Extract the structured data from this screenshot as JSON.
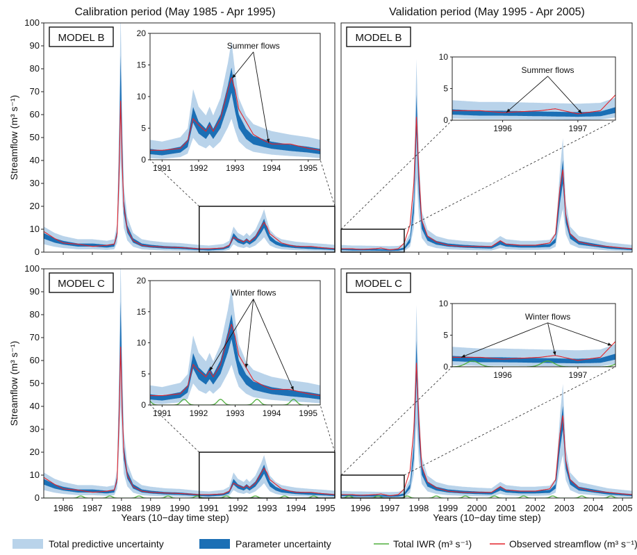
{
  "figure": {
    "col_titles": [
      "Calibration period (May 1985 - Apr 1995)",
      "Validation period (May 1995 - Apr 2005)"
    ],
    "ylabel": "Streamflow (m³ s⁻¹)",
    "xlabel": "Years (10−day time step)"
  },
  "colors": {
    "total_band": "#b9d3ea",
    "param_band": "#1b6fb5",
    "iwr_line": "#4fae3c",
    "observed_line": "#e3242b"
  },
  "legend": {
    "items": [
      {
        "key": "total",
        "label": "Total predictive uncertainty"
      },
      {
        "key": "param",
        "label": "Parameter uncertainty"
      },
      {
        "key": "iwr",
        "label": "Total IWR (m³ s⁻¹)"
      },
      {
        "key": "obs",
        "label": "Observed streamflow (m³ s⁻¹)"
      }
    ]
  },
  "chart_data": [
    {
      "type": "area",
      "panel": "calibration",
      "model": "MODEL B",
      "xlim": [
        1985.33,
        1995.33
      ],
      "ylim": [
        0,
        100
      ],
      "xticks": [
        1986,
        1987,
        1988,
        1989,
        1990,
        1991,
        1992,
        1993,
        1994,
        1995
      ],
      "yticks": [
        0,
        10,
        20,
        30,
        40,
        50,
        60,
        70,
        80,
        90,
        100
      ],
      "show_xtick_labels": false,
      "iwr": false,
      "inset": {
        "xlim": [
          1990.67,
          1995.33
        ],
        "ylim": [
          0,
          20
        ],
        "xticks": [
          1991,
          1992,
          1993,
          1994,
          1995
        ],
        "yticks": [
          0,
          5,
          10,
          15,
          20
        ],
        "annotation": "Summer flows",
        "iwr": false,
        "zoom_box": [
          1990.67,
          1995.33,
          0,
          20
        ]
      }
    },
    {
      "type": "area",
      "panel": "validation",
      "model": "MODEL B",
      "xlim": [
        1995.33,
        2005.33
      ],
      "ylim": [
        0,
        100
      ],
      "xticks": [
        1996,
        1997,
        1998,
        1999,
        2000,
        2001,
        2002,
        2003,
        2004,
        2005
      ],
      "yticks": [
        0,
        10,
        20,
        30,
        40,
        50,
        60,
        70,
        80,
        90,
        100
      ],
      "show_xtick_labels": false,
      "iwr": false,
      "inset": {
        "xlim": [
          1995.33,
          1997.5
        ],
        "ylim": [
          0,
          10
        ],
        "xticks": [
          1996,
          1997
        ],
        "yticks": [
          0,
          5,
          10
        ],
        "annotation": "Summer flows",
        "iwr": false,
        "zoom_box": [
          1995.33,
          1997.5,
          0,
          10
        ]
      }
    },
    {
      "type": "area",
      "panel": "calibration",
      "model": "MODEL C",
      "xlim": [
        1985.33,
        1995.33
      ],
      "ylim": [
        0,
        100
      ],
      "xticks": [
        1986,
        1987,
        1988,
        1989,
        1990,
        1991,
        1992,
        1993,
        1994,
        1995
      ],
      "yticks": [
        0,
        10,
        20,
        30,
        40,
        50,
        60,
        70,
        80,
        90,
        100
      ],
      "show_xtick_labels": true,
      "iwr": true,
      "inset": {
        "xlim": [
          1990.67,
          1995.33
        ],
        "ylim": [
          0,
          20
        ],
        "xticks": [
          1991,
          1992,
          1993,
          1994,
          1995
        ],
        "yticks": [
          0,
          5,
          10,
          15,
          20
        ],
        "annotation": "Winter flows",
        "iwr": true,
        "zoom_box": [
          1990.67,
          1995.33,
          0,
          20
        ]
      }
    },
    {
      "type": "area",
      "panel": "validation",
      "model": "MODEL C",
      "xlim": [
        1995.33,
        2005.33
      ],
      "ylim": [
        0,
        100
      ],
      "xticks": [
        1996,
        1997,
        1998,
        1999,
        2000,
        2001,
        2002,
        2003,
        2004,
        2005
      ],
      "yticks": [
        0,
        10,
        20,
        30,
        40,
        50,
        60,
        70,
        80,
        90,
        100
      ],
      "show_xtick_labels": true,
      "iwr": true,
      "inset": {
        "xlim": [
          1995.33,
          1997.5
        ],
        "ylim": [
          0,
          10
        ],
        "xticks": [
          1996,
          1997
        ],
        "yticks": [
          0,
          5,
          10
        ],
        "annotation": "Winter flows",
        "iwr": true,
        "zoom_box": [
          1995.33,
          1997.5,
          0,
          10
        ]
      }
    }
  ],
  "series_keyframes": {
    "median": [
      [
        1985.33,
        7
      ],
      [
        1985.7,
        5
      ],
      [
        1986,
        4
      ],
      [
        1986.5,
        3
      ],
      [
        1987,
        3
      ],
      [
        1987.5,
        2.5
      ],
      [
        1987.75,
        3
      ],
      [
        1987.85,
        8
      ],
      [
        1987.92,
        40
      ],
      [
        1987.97,
        75
      ],
      [
        1988.02,
        45
      ],
      [
        1988.08,
        20
      ],
      [
        1988.2,
        10
      ],
      [
        1988.4,
        5
      ],
      [
        1988.7,
        3
      ],
      [
        1989,
        2.5
      ],
      [
        1989.5,
        2
      ],
      [
        1990,
        1.8
      ],
      [
        1990.67,
        1.2
      ],
      [
        1991,
        1.0
      ],
      [
        1991.5,
        1.5
      ],
      [
        1991.7,
        2.5
      ],
      [
        1991.85,
        7
      ],
      [
        1992,
        5
      ],
      [
        1992.1,
        4.5
      ],
      [
        1992.2,
        4
      ],
      [
        1992.3,
        5
      ],
      [
        1992.4,
        4
      ],
      [
        1992.6,
        6
      ],
      [
        1992.8,
        10
      ],
      [
        1992.9,
        12.5
      ],
      [
        1993,
        9
      ],
      [
        1993.1,
        6
      ],
      [
        1993.3,
        4
      ],
      [
        1993.5,
        3
      ],
      [
        1993.8,
        2.5
      ],
      [
        1994,
        2.2
      ],
      [
        1994.5,
        1.8
      ],
      [
        1995,
        1.5
      ],
      [
        1995.33,
        1.2
      ],
      [
        1995.7,
        1.0
      ],
      [
        1996,
        1.0
      ],
      [
        1996.5,
        0.9
      ],
      [
        1997,
        0.8
      ],
      [
        1997.3,
        0.9
      ],
      [
        1997.5,
        1.5
      ],
      [
        1997.7,
        5
      ],
      [
        1997.83,
        20
      ],
      [
        1997.92,
        60
      ],
      [
        1998,
        30
      ],
      [
        1998.1,
        12
      ],
      [
        1998.3,
        6
      ],
      [
        1998.6,
        4
      ],
      [
        1999,
        3
      ],
      [
        1999.5,
        2.5
      ],
      [
        2000,
        2.2
      ],
      [
        2000.5,
        2
      ],
      [
        2000.8,
        4
      ],
      [
        2001,
        3
      ],
      [
        2001.5,
        2.5
      ],
      [
        2002,
        2.5
      ],
      [
        2002.5,
        2.8
      ],
      [
        2002.7,
        5
      ],
      [
        2002.85,
        25
      ],
      [
        2002.95,
        35
      ],
      [
        2003.05,
        15
      ],
      [
        2003.2,
        7
      ],
      [
        2003.5,
        4
      ],
      [
        2004,
        3
      ],
      [
        2004.5,
        2
      ],
      [
        2005,
        1.5
      ],
      [
        2005.33,
        1.2
      ]
    ],
    "observed": [
      [
        1985.33,
        9
      ],
      [
        1985.7,
        6
      ],
      [
        1986,
        4
      ],
      [
        1986.5,
        3.5
      ],
      [
        1987,
        2.5
      ],
      [
        1987.5,
        3
      ],
      [
        1987.75,
        3.5
      ],
      [
        1987.85,
        8
      ],
      [
        1987.92,
        35
      ],
      [
        1987.97,
        66
      ],
      [
        1988.02,
        40
      ],
      [
        1988.08,
        20
      ],
      [
        1988.2,
        10
      ],
      [
        1988.4,
        5
      ],
      [
        1988.7,
        3
      ],
      [
        1989,
        2.5
      ],
      [
        1989.5,
        2.2
      ],
      [
        1990,
        2
      ],
      [
        1990.67,
        1.5
      ],
      [
        1991,
        1.5
      ],
      [
        1991.5,
        1.8
      ],
      [
        1991.7,
        3
      ],
      [
        1991.85,
        6.5
      ],
      [
        1992,
        5.5
      ],
      [
        1992.1,
        5
      ],
      [
        1992.2,
        4.5
      ],
      [
        1992.3,
        5.5
      ],
      [
        1992.4,
        4.5
      ],
      [
        1992.6,
        6.5
      ],
      [
        1992.8,
        11
      ],
      [
        1992.9,
        13
      ],
      [
        1993,
        11
      ],
      [
        1993.1,
        8
      ],
      [
        1993.3,
        6
      ],
      [
        1993.5,
        4
      ],
      [
        1993.8,
        3
      ],
      [
        1994,
        2.5
      ],
      [
        1994.5,
        2.5
      ],
      [
        1995,
        1.8
      ],
      [
        1995.33,
        1.5
      ],
      [
        1995.7,
        1.5
      ],
      [
        1996,
        1.2
      ],
      [
        1996.5,
        1.5
      ],
      [
        1996.7,
        1.8
      ],
      [
        1997,
        1.0
      ],
      [
        1997.3,
        1.5
      ],
      [
        1997.5,
        4
      ],
      [
        1997.7,
        12
      ],
      [
        1997.83,
        30
      ],
      [
        1997.92,
        59
      ],
      [
        1998,
        35
      ],
      [
        1998.1,
        14
      ],
      [
        1998.3,
        7
      ],
      [
        1998.6,
        4.5
      ],
      [
        1999,
        3
      ],
      [
        1999.5,
        2.5
      ],
      [
        2000,
        2.5
      ],
      [
        2000.5,
        2.5
      ],
      [
        2000.8,
        5
      ],
      [
        2001,
        3.5
      ],
      [
        2001.5,
        3
      ],
      [
        2002,
        3
      ],
      [
        2002.5,
        4
      ],
      [
        2002.7,
        8
      ],
      [
        2002.85,
        28
      ],
      [
        2002.95,
        36
      ],
      [
        2003.05,
        16
      ],
      [
        2003.2,
        8
      ],
      [
        2003.5,
        4.5
      ],
      [
        2004,
        3
      ],
      [
        2004.5,
        2.5
      ],
      [
        2005,
        1.8
      ],
      [
        2005.33,
        1.5
      ]
    ],
    "iwr_peaks": [
      1986.6,
      1987.6,
      1988.6,
      1989.6,
      1990.6,
      1991.6,
      1992.6,
      1993.6,
      1994.6,
      1995.6,
      1996.6,
      1997.6,
      1998.6,
      1999.6,
      2000.6,
      2001.6,
      2002.6,
      2003.6,
      2004.6
    ]
  }
}
